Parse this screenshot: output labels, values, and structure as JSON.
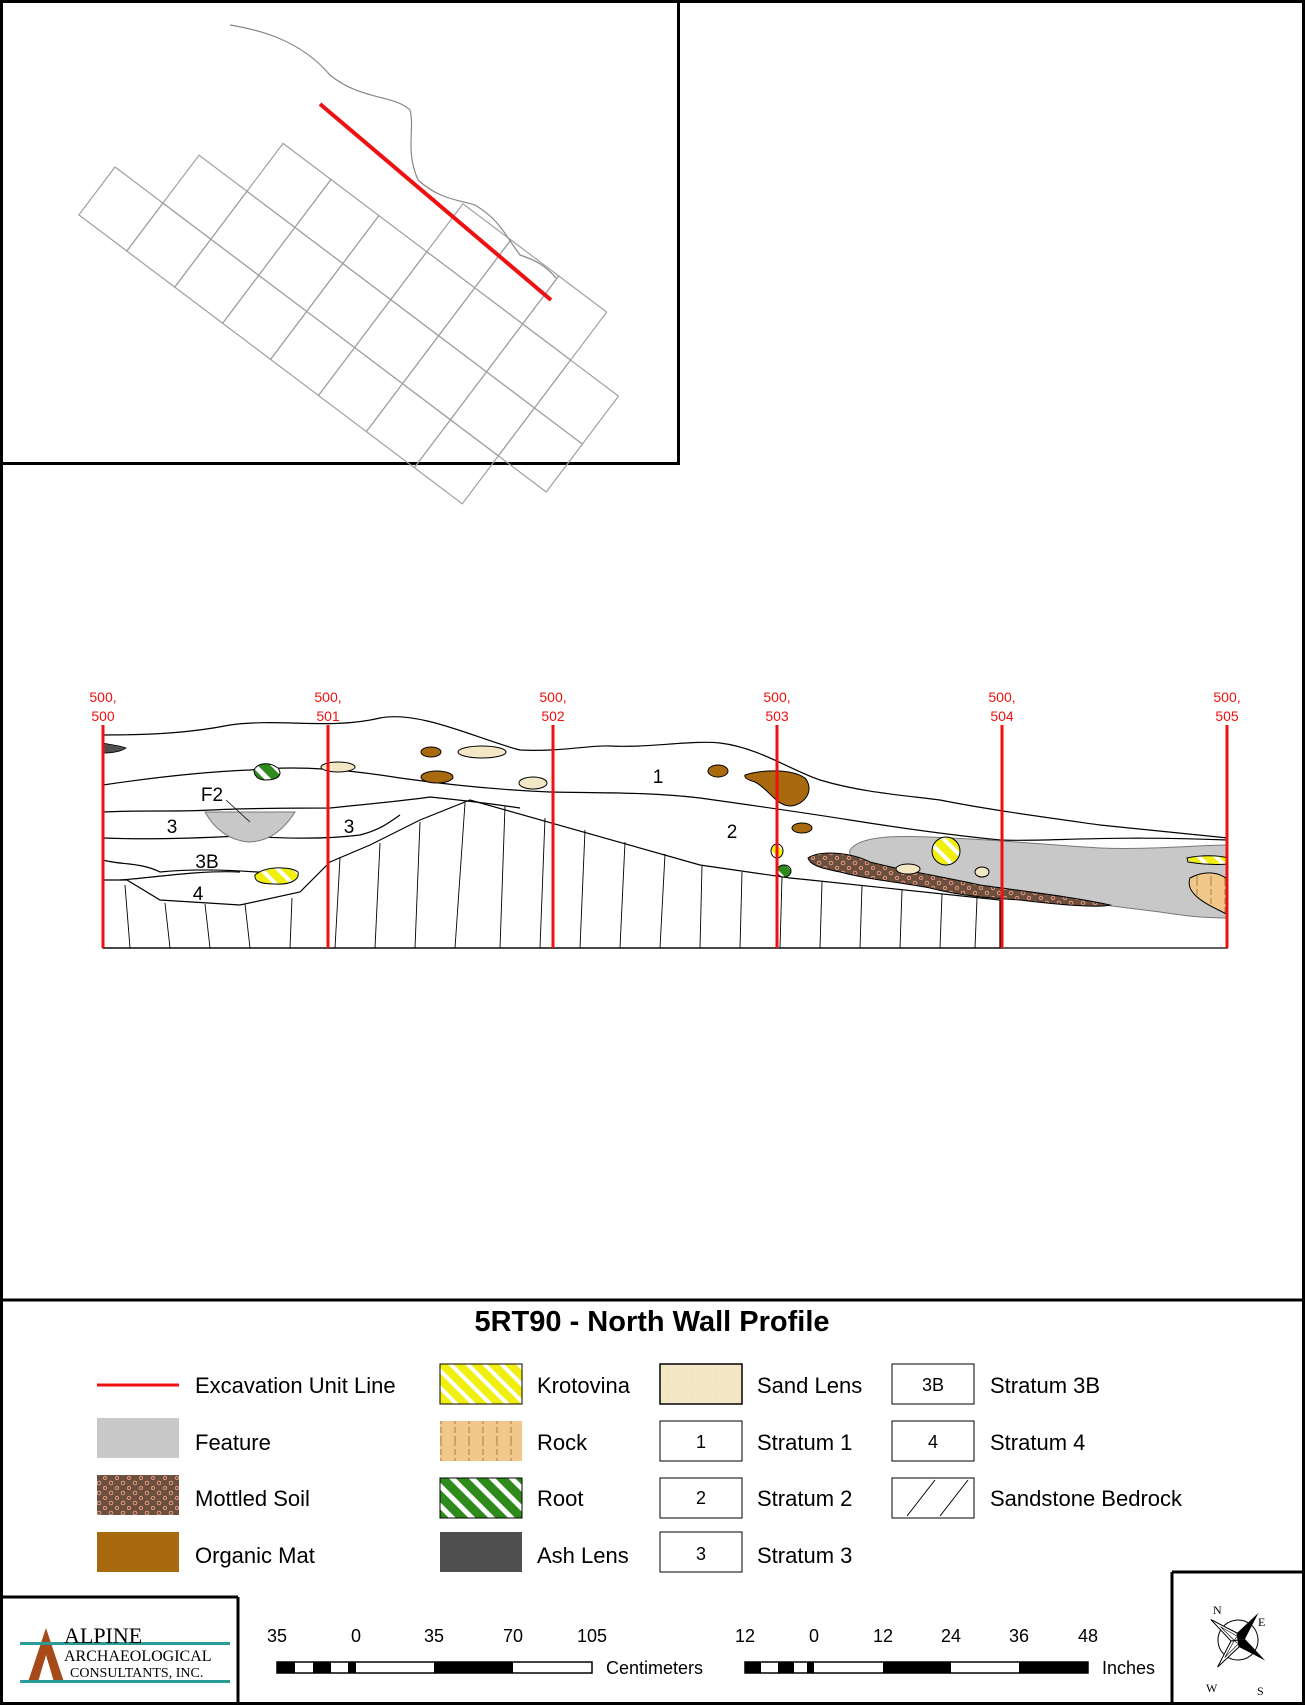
{
  "title": "5RT90 - North Wall Profile",
  "profile": {
    "unit_lines": [
      {
        "l1": "500,",
        "l2": "500"
      },
      {
        "l1": "500,",
        "l2": "501"
      },
      {
        "l1": "500,",
        "l2": "502"
      },
      {
        "l1": "500,",
        "l2": "503"
      },
      {
        "l1": "500,",
        "l2": "504"
      },
      {
        "l1": "500,",
        "l2": "505"
      }
    ],
    "strata_labels": [
      "1",
      "2",
      "3",
      "3",
      "3B",
      "4",
      "F2"
    ]
  },
  "legend": {
    "excavation_unit_line": "Excavation Unit Line",
    "feature": "Feature",
    "mottled_soil": "Mottled Soil",
    "organic_mat": "Organic Mat",
    "krotovina": "Krotovina",
    "rock": "Rock",
    "root": "Root",
    "ash_lens": "Ash Lens",
    "sand_lens": "Sand Lens",
    "stratum_1": {
      "box": "1",
      "label": "Stratum 1"
    },
    "stratum_2": {
      "box": "2",
      "label": "Stratum 2"
    },
    "stratum_3": {
      "box": "3",
      "label": "Stratum 3"
    },
    "stratum_3b": {
      "box": "3B",
      "label": "Stratum 3B"
    },
    "stratum_4": {
      "box": "4",
      "label": "Stratum 4"
    },
    "sandstone_bedrock": "Sandstone Bedrock"
  },
  "scale_cm": {
    "ticks": [
      "35",
      "0",
      "35",
      "70",
      "105"
    ],
    "unit": "Centimeters"
  },
  "scale_in": {
    "ticks": [
      "12",
      "0",
      "12",
      "24",
      "36",
      "48"
    ],
    "unit": "Inches"
  },
  "logo": {
    "line1": "ALPINE",
    "line2": "ARCHAEOLOGICAL",
    "line3": "CONSULTANTS, INC."
  },
  "compass": {
    "n": "N",
    "e": "E",
    "s": "S",
    "w": "W"
  },
  "colors": {
    "unit_line": "#ee1111",
    "feature": "#c8c8c8",
    "mottled": "#6b5040",
    "mottled_dot": "#e8957a",
    "organic": "#a8690f",
    "krotovina": "#f0ef10",
    "rock": "#f1c88a",
    "root": "#2f8a1c",
    "ash": "#4f4f4f",
    "sand": "#f3e8c6"
  }
}
